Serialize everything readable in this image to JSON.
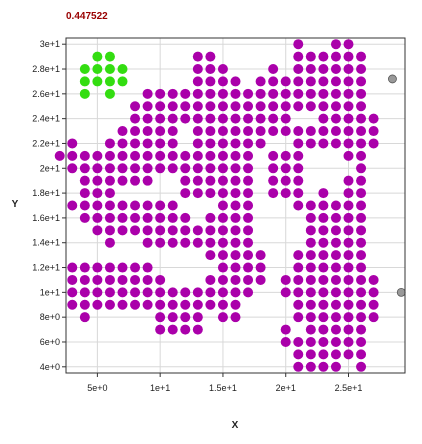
{
  "title": "0.447522",
  "colors": {
    "title": "#990000",
    "axis": "#333333",
    "grid": "#d8d8d8",
    "series_a": "#aa00aa",
    "series_b": "#33dd11",
    "series_c": "#999999"
  },
  "chart_data": {
    "type": "scatter",
    "title": "0.447522",
    "xlabel": "X",
    "ylabel": "Y",
    "xlim": [
      2.5,
      29.5
    ],
    "ylim": [
      3.5,
      30.5
    ],
    "grid": true,
    "legend": "none",
    "x_ticks": [
      {
        "value": 5,
        "label": "5e+0"
      },
      {
        "value": 10,
        "label": "1e+1"
      },
      {
        "value": 15,
        "label": "1.5e+1"
      },
      {
        "value": 20,
        "label": "2e+1"
      },
      {
        "value": 25,
        "label": "2.5e+1"
      },
      {
        "value": 30,
        "label": "3e+1"
      }
    ],
    "y_ticks": [
      {
        "value": 4,
        "label": "4e+0"
      },
      {
        "value": 6,
        "label": "6e+0"
      },
      {
        "value": 8,
        "label": "8e+0"
      },
      {
        "value": 10,
        "label": "1e+1"
      },
      {
        "value": 12,
        "label": "1.2e+1"
      },
      {
        "value": 14,
        "label": "1.4e+1"
      },
      {
        "value": 16,
        "label": "1.6e+1"
      },
      {
        "value": 18,
        "label": "1.8e+1"
      },
      {
        "value": 20,
        "label": "2e+1"
      },
      {
        "value": 22,
        "label": "2.2e+1"
      },
      {
        "value": 24,
        "label": "2.4e+1"
      },
      {
        "value": 26,
        "label": "2.6e+1"
      },
      {
        "value": 28,
        "label": "2.8e+1"
      },
      {
        "value": 30,
        "label": "3e+1"
      }
    ],
    "series": [
      {
        "color": "#aa00aa",
        "rows": [
          {
            "y": 30,
            "x": [
              21,
              24,
              25
            ]
          },
          {
            "y": 29,
            "x": [
              13,
              14,
              21,
              22,
              23,
              24,
              25,
              26
            ]
          },
          {
            "y": 28,
            "x": [
              13,
              14,
              15,
              19,
              21,
              22,
              23,
              24,
              25,
              26
            ]
          },
          {
            "y": 27,
            "x": [
              13,
              14,
              15,
              16,
              18,
              19,
              20,
              21,
              22,
              23,
              24,
              25,
              26
            ]
          },
          {
            "y": 26,
            "x": [
              9,
              10,
              11,
              12,
              13,
              14,
              15,
              16,
              17,
              18,
              19,
              20,
              21,
              22,
              23,
              24,
              25,
              26
            ]
          },
          {
            "y": 25,
            "x": [
              8,
              9,
              10,
              11,
              12,
              13,
              14,
              15,
              16,
              17,
              18,
              19,
              20,
              21,
              22,
              23,
              24,
              25,
              26
            ]
          },
          {
            "y": 24,
            "x": [
              8,
              9,
              10,
              11,
              12,
              13,
              14,
              15,
              16,
              17,
              18,
              19,
              20,
              23,
              24,
              25,
              26,
              27
            ]
          },
          {
            "y": 23,
            "x": [
              7,
              8,
              9,
              10,
              11,
              13,
              14,
              15,
              16,
              17,
              18,
              19,
              20,
              21,
              22,
              23,
              24,
              25,
              26,
              27
            ]
          },
          {
            "y": 22,
            "x": [
              3,
              6,
              7,
              8,
              9,
              10,
              11,
              13,
              14,
              15,
              16,
              17,
              18,
              21,
              22,
              23,
              24,
              25,
              26,
              27
            ]
          },
          {
            "y": 21,
            "x": [
              2,
              3,
              4,
              5,
              6,
              7,
              8,
              9,
              10,
              11,
              12,
              13,
              14,
              15,
              16,
              17,
              19,
              20,
              21,
              25,
              26
            ]
          },
          {
            "y": 20,
            "x": [
              3,
              4,
              5,
              6,
              7,
              8,
              9,
              10,
              11,
              12,
              13,
              14,
              15,
              16,
              17,
              19,
              20,
              21,
              26
            ]
          },
          {
            "y": 19,
            "x": [
              4,
              5,
              6,
              7,
              8,
              9,
              12,
              13,
              14,
              15,
              16,
              17,
              19,
              20,
              21,
              25,
              26
            ]
          },
          {
            "y": 18,
            "x": [
              4,
              5,
              6,
              12,
              13,
              14,
              15,
              16,
              17,
              19,
              20,
              21,
              23,
              25,
              26
            ]
          },
          {
            "y": 17,
            "x": [
              3,
              4,
              5,
              6,
              7,
              8,
              9,
              10,
              11,
              15,
              16,
              17,
              21,
              22,
              23,
              24,
              25,
              26
            ]
          },
          {
            "y": 16,
            "x": [
              4,
              5,
              6,
              7,
              8,
              9,
              10,
              11,
              12,
              14,
              15,
              16,
              17,
              22,
              23,
              24,
              25,
              26
            ]
          },
          {
            "y": 15,
            "x": [
              5,
              6,
              7,
              8,
              9,
              10,
              11,
              12,
              13,
              14,
              15,
              16,
              17,
              22,
              23,
              24,
              25,
              26
            ]
          },
          {
            "y": 14,
            "x": [
              6,
              9,
              10,
              11,
              12,
              13,
              14,
              15,
              16,
              17,
              22,
              23,
              24,
              25,
              26
            ]
          },
          {
            "y": 13,
            "x": [
              14,
              15,
              16,
              17,
              18,
              21,
              22,
              23,
              24,
              25,
              26
            ]
          },
          {
            "y": 12,
            "x": [
              3,
              4,
              5,
              6,
              7,
              8,
              9,
              15,
              16,
              17,
              18,
              21,
              22,
              23,
              24,
              25,
              26
            ]
          },
          {
            "y": 11,
            "x": [
              3,
              4,
              5,
              6,
              7,
              8,
              9,
              10,
              14,
              15,
              16,
              17,
              18,
              20,
              21,
              22,
              23,
              24,
              25,
              26,
              27
            ]
          },
          {
            "y": 10,
            "x": [
              3,
              4,
              5,
              6,
              7,
              8,
              9,
              10,
              11,
              12,
              13,
              14,
              15,
              16,
              17,
              20,
              21,
              22,
              23,
              24,
              25,
              26,
              27
            ]
          },
          {
            "y": 9,
            "x": [
              3,
              4,
              5,
              6,
              7,
              8,
              9,
              10,
              11,
              12,
              13,
              14,
              15,
              16,
              21,
              22,
              23,
              24,
              25,
              26,
              27
            ]
          },
          {
            "y": 8,
            "x": [
              4,
              10,
              11,
              12,
              13,
              15,
              16,
              21,
              22,
              23,
              24,
              25,
              26,
              27
            ]
          },
          {
            "y": 7,
            "x": [
              10,
              11,
              12,
              13,
              20,
              22,
              23,
              24,
              25,
              26
            ]
          },
          {
            "y": 6,
            "x": [
              20,
              21,
              22,
              23,
              24,
              25,
              26
            ]
          },
          {
            "y": 5,
            "x": [
              21,
              22,
              23,
              24,
              25,
              26
            ]
          },
          {
            "y": 4,
            "x": [
              21,
              22,
              23,
              24,
              26
            ]
          }
        ]
      },
      {
        "color": "#33dd11",
        "rows": [
          {
            "y": 29,
            "x": [
              5,
              6
            ]
          },
          {
            "y": 28,
            "x": [
              4,
              5,
              6,
              7
            ]
          },
          {
            "y": 27,
            "x": [
              4,
              5,
              6,
              7
            ]
          },
          {
            "y": 26,
            "x": [
              4,
              6
            ]
          }
        ]
      },
      {
        "color": "#999999",
        "rows": [
          {
            "y": 27.2,
            "x": [
              28.5
            ]
          },
          {
            "y": 10,
            "x": [
              29.2
            ]
          }
        ]
      }
    ]
  }
}
